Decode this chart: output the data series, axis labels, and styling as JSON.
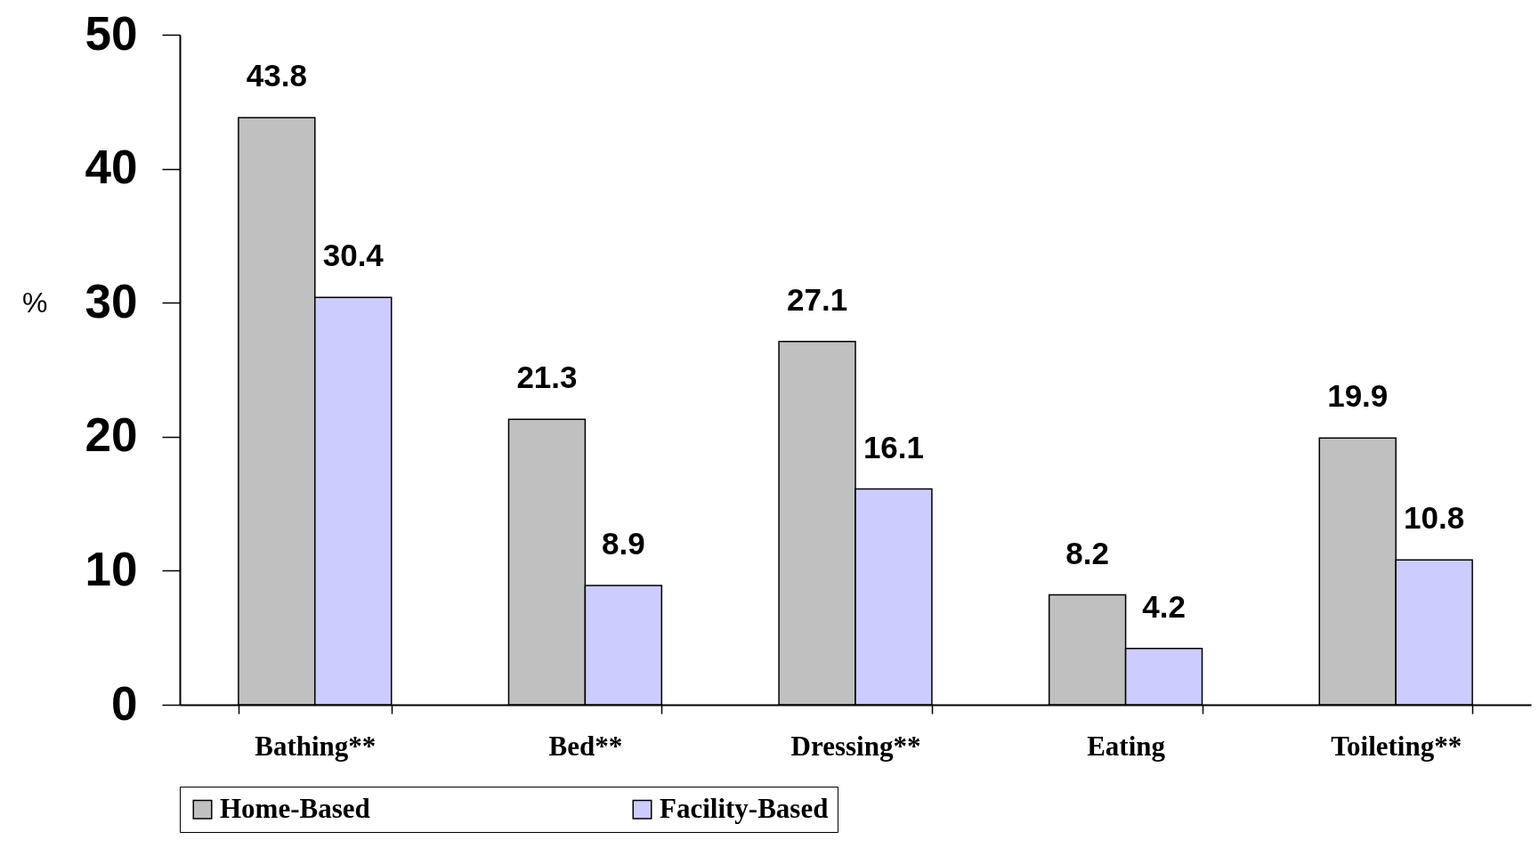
{
  "chart_data": {
    "type": "bar",
    "ylabel": "%",
    "categories": [
      "Bathing**",
      "Bed**",
      "Dressing**",
      "Eating",
      "Toileting**"
    ],
    "series": [
      {
        "name": "Home-Based",
        "color": "#c0c0c0",
        "values": [
          43.8,
          21.3,
          27.1,
          8.2,
          19.9
        ]
      },
      {
        "name": "Facility-Based",
        "color": "#ccccff",
        "values": [
          30.4,
          8.9,
          16.1,
          4.2,
          10.8
        ]
      }
    ],
    "ylim": [
      0,
      50
    ],
    "yticks": [
      0,
      10,
      20,
      30,
      40,
      50
    ],
    "grid": false,
    "legend": "bottom",
    "data_labels": true
  }
}
